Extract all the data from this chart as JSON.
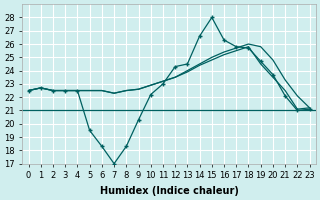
{
  "xlabel": "Humidex (Indice chaleur)",
  "bg_color": "#d0eeee",
  "grid_color": "#ffffff",
  "line_color": "#006060",
  "xlim": [
    -0.5,
    23.5
  ],
  "ylim": [
    17,
    29
  ],
  "yticks": [
    17,
    18,
    19,
    20,
    21,
    22,
    23,
    24,
    25,
    26,
    27,
    28
  ],
  "xtick_labels": [
    "0",
    "1",
    "2",
    "3",
    "4",
    "5",
    "6",
    "7",
    "8",
    "9",
    "10",
    "11",
    "12",
    "13",
    "14",
    "15",
    "16",
    "17",
    "18",
    "19",
    "20",
    "21",
    "22",
    "23"
  ],
  "series1": {
    "x": [
      0,
      1,
      2,
      3,
      4,
      5,
      6,
      7,
      8,
      9,
      10,
      11,
      12,
      13,
      14,
      15,
      16,
      17,
      18,
      19,
      20,
      21,
      22,
      23
    ],
    "y": [
      22.5,
      22.7,
      22.5,
      22.5,
      22.5,
      22.5,
      22.5,
      22.3,
      22.5,
      22.6,
      22.9,
      23.2,
      23.5,
      23.9,
      24.4,
      24.8,
      25.2,
      25.5,
      25.8,
      24.5,
      23.5,
      22.5,
      21.1,
      21.2
    ]
  },
  "series2": {
    "x": [
      0,
      1,
      2,
      3,
      4,
      5,
      6,
      7,
      8,
      9,
      10,
      11,
      12,
      13,
      14,
      15,
      16,
      17,
      18,
      19,
      20,
      21,
      22,
      23
    ],
    "y": [
      22.5,
      22.7,
      22.5,
      22.5,
      22.5,
      19.5,
      18.3,
      17.0,
      18.3,
      20.3,
      22.2,
      23.0,
      24.3,
      24.5,
      26.6,
      28.0,
      26.3,
      25.8,
      25.7,
      24.7,
      23.7,
      22.1,
      21.0,
      21.1
    ]
  },
  "series3": {
    "x": [
      0,
      1,
      2,
      3,
      4,
      5,
      6,
      7,
      8,
      9,
      10,
      11,
      12,
      13,
      14,
      15,
      16,
      17,
      18,
      19,
      20,
      21,
      22,
      23
    ],
    "y": [
      22.5,
      22.7,
      22.5,
      22.5,
      22.5,
      22.5,
      22.5,
      22.3,
      22.5,
      22.6,
      22.9,
      23.2,
      23.5,
      24.0,
      24.5,
      25.0,
      25.4,
      25.7,
      26.0,
      25.8,
      24.8,
      23.3,
      22.1,
      21.2
    ]
  },
  "hline_y": 21.0
}
